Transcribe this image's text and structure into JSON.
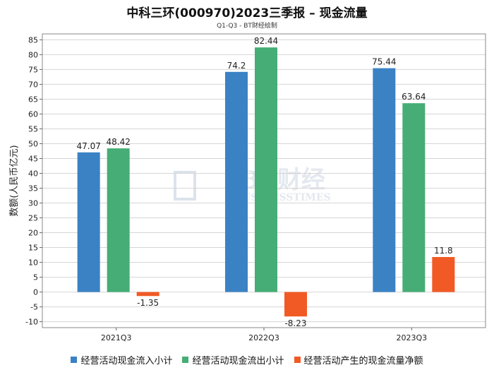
{
  "title": "中科三环(000970)2023三季报 – 现金流量",
  "subtitle": "Q1-Q3 - BT财经绘制",
  "watermark": {
    "main": "BT财经",
    "sub": "BUSINESSTIMES"
  },
  "chart_data": {
    "type": "bar",
    "title": "中科三环(000970)2023三季报 – 现金流量",
    "subtitle": "Q1-Q3 - BT财经绘制",
    "ylabel": "数额(人民币亿元)",
    "xlabel": "",
    "ylim": [
      -12,
      87
    ],
    "yticks": [
      -10,
      -5,
      0,
      5,
      10,
      15,
      20,
      25,
      30,
      35,
      40,
      45,
      50,
      55,
      60,
      65,
      70,
      75,
      80,
      85
    ],
    "grid": true,
    "legend_position": "bottom",
    "categories": [
      "2021Q3",
      "2022Q3",
      "2023Q3"
    ],
    "series": [
      {
        "name": "经营活动现金流入小计",
        "color": "#3a82c4",
        "values": [
          47.07,
          74.2,
          75.44
        ],
        "labels": [
          "47.07",
          "74.2",
          "75.44"
        ]
      },
      {
        "name": "经营活动现金流出小计",
        "color": "#45ad75",
        "values": [
          48.42,
          82.44,
          63.64
        ],
        "labels": [
          "48.42",
          "82.44",
          "63.64"
        ]
      },
      {
        "name": "经营活动产生的现金流量净额",
        "color": "#f15a24",
        "values": [
          -1.35,
          -8.23,
          11.8
        ],
        "labels": [
          "-1.35",
          "-8.23",
          "11.8"
        ]
      }
    ]
  }
}
